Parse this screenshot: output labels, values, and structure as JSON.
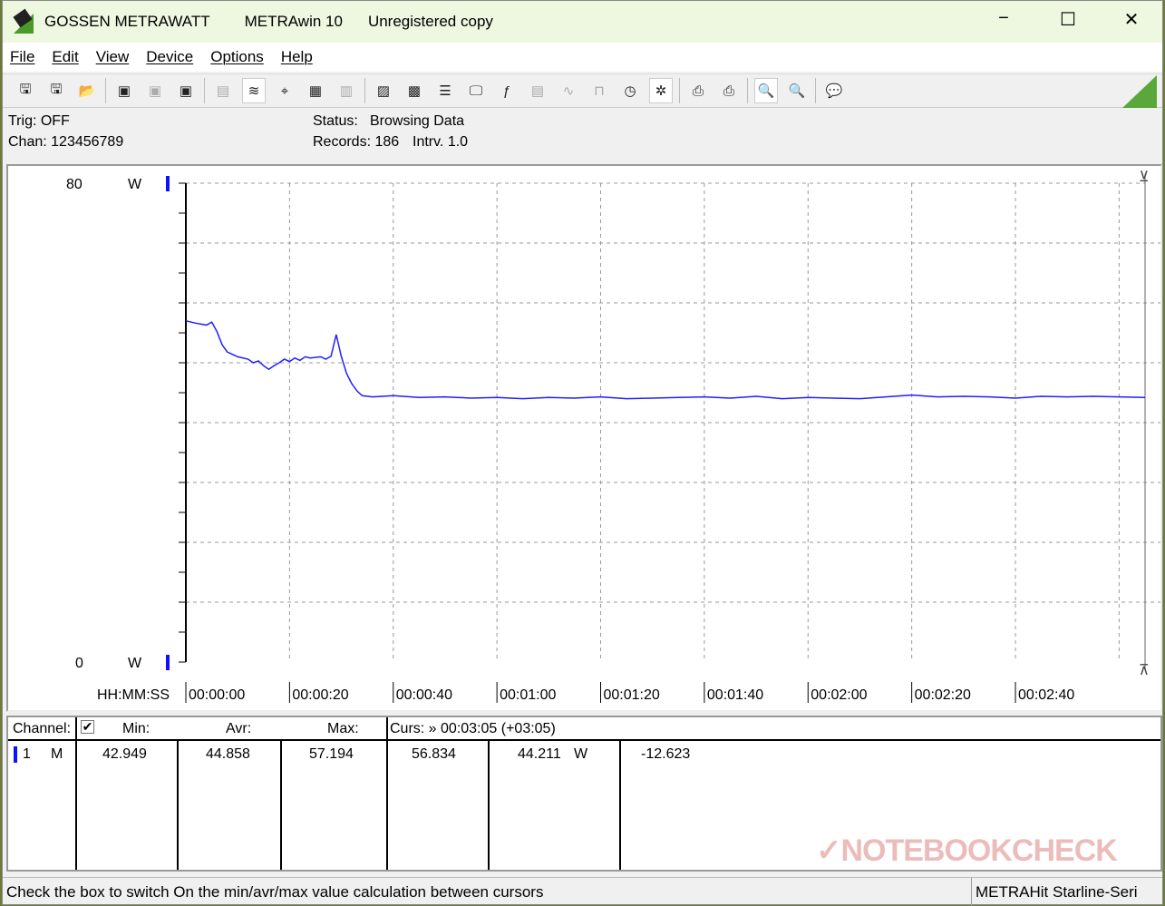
{
  "title_bar": {
    "vendor": "GOSSEN METRAWATT",
    "app": "METRAwin 10",
    "license": "Unregistered copy",
    "minimize": "−",
    "maximize": "☐",
    "close": "✕"
  },
  "menu": [
    "File",
    "Edit",
    "View",
    "Device",
    "Options",
    "Help"
  ],
  "toolbar": [
    {
      "icon": "save-icon",
      "g": "🖫"
    },
    {
      "icon": "save-as-icon",
      "g": "🖫"
    },
    {
      "icon": "open-folder-icon",
      "g": "📂"
    },
    "|",
    {
      "icon": "device-read-icon",
      "g": "▣"
    },
    {
      "icon": "device-transfer-icon",
      "g": "▣",
      "disabled": true
    },
    {
      "icon": "device-memory-icon",
      "g": "▣"
    },
    "|",
    {
      "icon": "numeric-display-icon",
      "g": "▤",
      "disabled": true
    },
    {
      "icon": "waveform-view-icon",
      "g": "≋",
      "active": true
    },
    {
      "icon": "cursor-crosshair-icon",
      "g": "⌖"
    },
    {
      "icon": "table-view-icon",
      "g": "▦"
    },
    {
      "icon": "histogram-icon",
      "g": "▥",
      "disabled": true
    },
    "|",
    {
      "icon": "device-settings-icon",
      "g": "▨"
    },
    {
      "icon": "device-config-icon",
      "g": "▩"
    },
    {
      "icon": "channel-list-icon",
      "g": "☰"
    },
    {
      "icon": "monitor-icon",
      "g": "🖵"
    },
    {
      "icon": "function-icon",
      "g": "ƒ"
    },
    {
      "icon": "meter-icon",
      "g": "▤",
      "disabled": true
    },
    {
      "icon": "signal-icon",
      "g": "∿",
      "disabled": true
    },
    {
      "icon": "pulse-icon",
      "g": "⊓",
      "disabled": true
    },
    {
      "icon": "clock-settings-icon",
      "g": "◷"
    },
    {
      "icon": "bug-icon",
      "g": "✲",
      "active": true
    },
    "|",
    {
      "icon": "print-preview-icon",
      "g": "⎙"
    },
    {
      "icon": "print-icon",
      "g": "⎙"
    },
    "|",
    {
      "icon": "zoom-waveform-icon",
      "g": "🔍",
      "active": true
    },
    {
      "icon": "zoom-out-icon",
      "g": "🔍"
    },
    "|",
    {
      "icon": "comment-icon",
      "g": "💬"
    }
  ],
  "info": {
    "trig": "Trig: OFF",
    "chan": "Chan:  123456789",
    "status_label": "Status:",
    "status_value": "Browsing Data",
    "records": "Records: 186",
    "interval": "Intrv. 1.0"
  },
  "chart_data": {
    "type": "line",
    "y_max_label": "80",
    "y_min_label": "0",
    "unit": "W",
    "x_axis_label": "HH:MM:SS",
    "ylim": [
      0,
      80
    ],
    "xlim": [
      0,
      185
    ],
    "grid": true,
    "x_ticks": [
      "00:00:00",
      "00:00:20",
      "00:00:40",
      "00:01:00",
      "00:01:20",
      "00:01:40",
      "00:02:00",
      "00:02:20",
      "00:02:40"
    ],
    "series_color": "#2020ff",
    "x": [
      0,
      2,
      4,
      5,
      6,
      7,
      8,
      10,
      12,
      13,
      14,
      15,
      16,
      17,
      18,
      19,
      20,
      21,
      22,
      23,
      24,
      26,
      27,
      28,
      29,
      30,
      31,
      32,
      33,
      34,
      36,
      38,
      40,
      45,
      50,
      55,
      60,
      65,
      70,
      75,
      80,
      85,
      90,
      95,
      100,
      105,
      110,
      115,
      120,
      125,
      130,
      135,
      140,
      145,
      150,
      155,
      160,
      165,
      170,
      175,
      180,
      185
    ],
    "y": [
      57.0,
      56.6,
      56.3,
      56.8,
      55.2,
      53.0,
      51.8,
      51.0,
      50.6,
      50.0,
      50.3,
      49.5,
      48.9,
      49.5,
      50.0,
      50.6,
      50.2,
      50.8,
      50.4,
      51.0,
      50.8,
      51.0,
      50.6,
      51.1,
      54.7,
      51.0,
      48.2,
      46.5,
      45.3,
      44.5,
      44.3,
      44.4,
      44.5,
      44.2,
      44.3,
      44.1,
      44.2,
      44.0,
      44.2,
      44.1,
      44.3,
      44.0,
      44.1,
      44.2,
      44.3,
      44.1,
      44.4,
      44.0,
      44.2,
      44.1,
      44.0,
      44.3,
      44.6,
      44.3,
      44.4,
      44.3,
      44.1,
      44.4,
      44.3,
      44.4,
      44.3,
      44.2
    ]
  },
  "stats": {
    "channel_label": "Channel:",
    "min_label": "Min:",
    "avr_label": "Avr:",
    "max_label": "Max:",
    "cursor_label": "Curs: » 00:03:05 (+03:05)",
    "checkbox_checked": true,
    "row": {
      "channel": "1",
      "mode": "M",
      "min": "42.949",
      "avr": "44.858",
      "max": "57.194",
      "cursor_a": "56.834",
      "cursor_b": "44.211",
      "unit": "W",
      "delta": "-12.623"
    }
  },
  "status_bar": {
    "hint": "Check the box to switch On the min/avr/max value calculation between cursors",
    "device": "METRAHit Starline-Seri"
  },
  "watermark": "NOTEBOOKCHECK"
}
